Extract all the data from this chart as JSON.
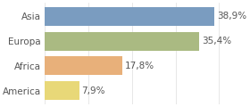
{
  "categories": [
    "Asia",
    "Europa",
    "Africa",
    "America"
  ],
  "values": [
    38.9,
    35.4,
    17.8,
    7.9
  ],
  "labels": [
    "38,9%",
    "35,4%",
    "17,8%",
    "7,9%"
  ],
  "bar_colors": [
    "#7a9cc0",
    "#aaba82",
    "#e8b07a",
    "#e8d878"
  ],
  "background_color": "#ffffff",
  "xlim": [
    0,
    46
  ],
  "bar_height": 0.75,
  "label_fontsize": 7.5,
  "tick_fontsize": 7.5,
  "text_color": "#555555",
  "grid_color": "#dddddd"
}
